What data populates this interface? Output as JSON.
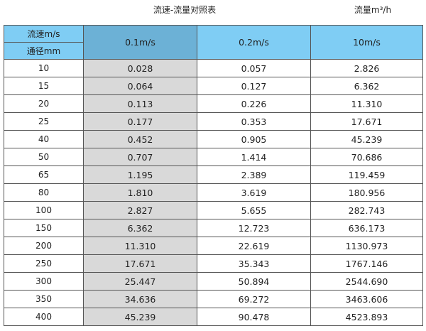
{
  "title": "流速-流量对照表",
  "unit": "流量m³/h",
  "header": {
    "velocity_label": "流速m/s",
    "diameter_label": "通径mm",
    "columns": [
      "0.1m/s",
      "0.2m/s",
      "10m/s"
    ]
  },
  "colors": {
    "header": "#7fcdf4",
    "header_highlight": "#6cb1d6",
    "highlight_column": "#d9d9d9"
  },
  "rows": [
    {
      "dn": "10",
      "v": [
        "0.028",
        "0.057",
        "2.826"
      ]
    },
    {
      "dn": "15",
      "v": [
        "0.064",
        "0.127",
        "6.362"
      ]
    },
    {
      "dn": "20",
      "v": [
        "0.113",
        "0.226",
        "11.310"
      ]
    },
    {
      "dn": "25",
      "v": [
        "0.177",
        "0.353",
        "17.671"
      ]
    },
    {
      "dn": "40",
      "v": [
        "0.452",
        "0.905",
        "45.239"
      ]
    },
    {
      "dn": "50",
      "v": [
        "0.707",
        "1.414",
        "70.686"
      ]
    },
    {
      "dn": "65",
      "v": [
        "1.195",
        "2.389",
        "119.459"
      ]
    },
    {
      "dn": "80",
      "v": [
        "1.810",
        "3.619",
        "180.956"
      ]
    },
    {
      "dn": "100",
      "v": [
        "2.827",
        "5.655",
        "282.743"
      ]
    },
    {
      "dn": "150",
      "v": [
        "6.362",
        "12.723",
        "636.173"
      ]
    },
    {
      "dn": "200",
      "v": [
        "11.310",
        "22.619",
        "1130.973"
      ]
    },
    {
      "dn": "250",
      "v": [
        "17.671",
        "35.343",
        "1767.146"
      ]
    },
    {
      "dn": "300",
      "v": [
        "25.447",
        "50.894",
        "2544.690"
      ]
    },
    {
      "dn": "350",
      "v": [
        "34.636",
        "69.272",
        "3463.606"
      ]
    },
    {
      "dn": "400",
      "v": [
        "45.239",
        "90.478",
        "4523.893"
      ]
    }
  ]
}
